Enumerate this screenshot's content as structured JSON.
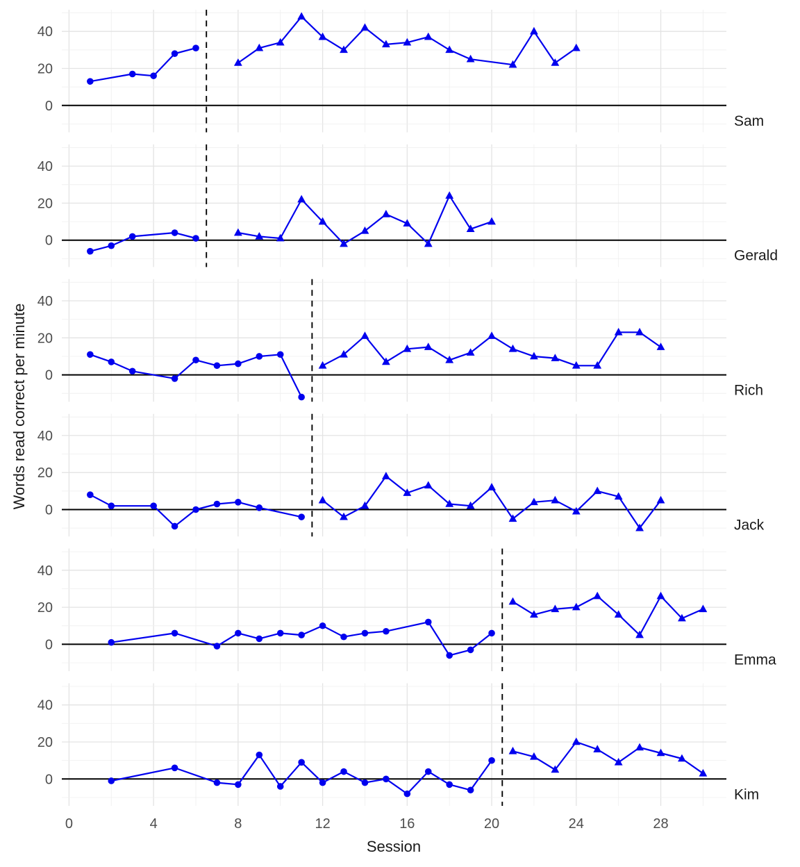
{
  "chart_data": {
    "type": "line",
    "title": "",
    "xlabel": "Session",
    "ylabel": "Words read correct per minute",
    "x_ticks": [
      0,
      4,
      8,
      12,
      16,
      20,
      24,
      28
    ],
    "y_ticks_per_panel": [
      0,
      20,
      40
    ],
    "xlim": [
      0,
      31
    ],
    "ylim_per_panel": [
      -14.5,
      51.8
    ],
    "grid": "on",
    "legend": "none",
    "series_color": "#0000ee",
    "phase_line_style": "dashed",
    "zero_line_color": "#000000",
    "baseline_marker": "circle",
    "treatment_marker": "triangle",
    "panels": [
      {
        "label": "Sam",
        "phase_change_x": 6.5,
        "baseline": {
          "x": [
            1,
            3,
            4,
            5,
            6
          ],
          "y": [
            13,
            17,
            16,
            28,
            31
          ]
        },
        "treatment": {
          "x": [
            8,
            9,
            10,
            11,
            12,
            13,
            14,
            15,
            16,
            17,
            18,
            19,
            21,
            22,
            23,
            24
          ],
          "y": [
            23,
            31,
            34,
            48,
            37,
            30,
            42,
            33,
            34,
            37,
            30,
            25,
            22,
            40,
            23,
            31
          ]
        }
      },
      {
        "label": "Gerald",
        "phase_change_x": 6.5,
        "baseline": {
          "x": [
            1,
            2,
            3,
            5,
            6
          ],
          "y": [
            -6,
            -3,
            2,
            4,
            1
          ]
        },
        "treatment": {
          "x": [
            8,
            9,
            10,
            11,
            12,
            13,
            14,
            15,
            16,
            17,
            18,
            19,
            20
          ],
          "y": [
            4,
            2,
            1,
            22,
            10,
            -2,
            5,
            14,
            9,
            -2,
            24,
            6,
            10
          ]
        }
      },
      {
        "label": "Rich",
        "phase_change_x": 11.5,
        "baseline": {
          "x": [
            1,
            2,
            3,
            5,
            6,
            7,
            8,
            9,
            10,
            11
          ],
          "y": [
            11,
            7,
            2,
            -2,
            8,
            5,
            6,
            10,
            11,
            -12
          ]
        },
        "treatment": {
          "x": [
            12,
            13,
            14,
            15,
            16,
            17,
            18,
            19,
            20,
            21,
            22,
            23,
            24,
            25,
            26,
            27,
            28
          ],
          "y": [
            5,
            11,
            21,
            7,
            14,
            15,
            8,
            12,
            21,
            14,
            10,
            9,
            5,
            5,
            23,
            23,
            15
          ]
        }
      },
      {
        "label": "Jack",
        "phase_change_x": 11.5,
        "baseline": {
          "x": [
            1,
            2,
            4,
            5,
            6,
            7,
            8,
            9,
            11
          ],
          "y": [
            8,
            2,
            2,
            -9,
            0,
            3,
            4,
            1,
            -4
          ]
        },
        "treatment": {
          "x": [
            12,
            13,
            14,
            15,
            16,
            17,
            18,
            19,
            20,
            21,
            22,
            23,
            24,
            25,
            26,
            27,
            28
          ],
          "y": [
            5,
            -4,
            2,
            18,
            9,
            13,
            3,
            2,
            12,
            -5,
            4,
            5,
            -1,
            10,
            7,
            -10,
            5
          ]
        }
      },
      {
        "label": "Emma",
        "phase_change_x": 20.5,
        "baseline": {
          "x": [
            2,
            5,
            7,
            8,
            9,
            10,
            11,
            12,
            13,
            14,
            15,
            17,
            18,
            19,
            20
          ],
          "y": [
            1,
            6,
            -1,
            6,
            3,
            6,
            5,
            10,
            4,
            6,
            7,
            12,
            -6,
            -3,
            6
          ]
        },
        "treatment": {
          "x": [
            21,
            22,
            23,
            24,
            25,
            26,
            27,
            28,
            29,
            30
          ],
          "y": [
            23,
            16,
            19,
            20,
            26,
            16,
            5,
            26,
            14,
            19
          ]
        }
      },
      {
        "label": "Kim",
        "phase_change_x": 20.5,
        "baseline": {
          "x": [
            2,
            5,
            7,
            8,
            9,
            10,
            11,
            12,
            13,
            14,
            15,
            16,
            17,
            18,
            19,
            20
          ],
          "y": [
            -1,
            6,
            -2,
            -3,
            13,
            -4,
            9,
            -2,
            4,
            -2,
            0,
            -8,
            4,
            -3,
            -6,
            10
          ]
        },
        "treatment": {
          "x": [
            21,
            22,
            23,
            24,
            25,
            26,
            27,
            28,
            29,
            30
          ],
          "y": [
            15,
            12,
            5,
            20,
            16,
            9,
            17,
            14,
            11,
            3
          ]
        }
      }
    ]
  },
  "colors": {
    "tick_label": "#4d4d4d",
    "axis_title": "#1a1a1a",
    "strip_label": "#1a1a1a",
    "grid_major": "#e3e3e3",
    "grid_minor": "#f0f0f0",
    "background": "#ffffff"
  }
}
